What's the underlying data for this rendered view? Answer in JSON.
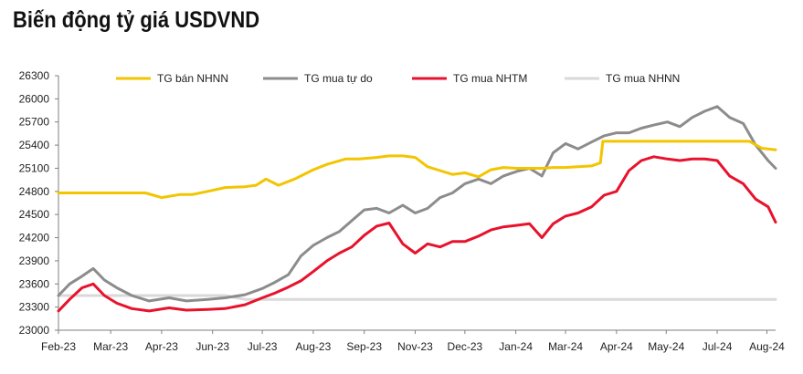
{
  "chart_data": {
    "type": "line",
    "title": "Biến động tỷ giá USDVND",
    "xlabel": "",
    "ylabel": "",
    "ylim": [
      23000,
      26300
    ],
    "yticks": [
      23000,
      23300,
      23600,
      23900,
      24200,
      24500,
      24800,
      25100,
      25400,
      25700,
      26000,
      26300
    ],
    "x_start": "2023-02-01",
    "x_end": "2024-08-31",
    "xticks": [
      "Feb-23",
      "Mar-23",
      "Apr-23",
      "Jun-23",
      "Jul-23",
      "Aug-23",
      "Sep-23",
      "Nov-23",
      "Dec-23",
      "Jan-24",
      "Mar-24",
      "Apr-24",
      "May-24",
      "Jul-24",
      "Aug-24"
    ],
    "xtick_dates": [
      "2023-02-01",
      "2023-03-15",
      "2023-04-25",
      "2023-06-05",
      "2023-07-15",
      "2023-08-25",
      "2023-10-05",
      "2023-11-15",
      "2023-12-25",
      "2024-02-04",
      "2024-03-15",
      "2024-04-25",
      "2024-06-04",
      "2024-07-15",
      "2024-08-24"
    ],
    "legend_position": "top",
    "grid": false,
    "series": [
      {
        "name": "TG bán NHNN",
        "color": "#F2C500",
        "x": [
          "2023-02-01",
          "2023-03-01",
          "2023-04-01",
          "2023-04-12",
          "2023-04-25",
          "2023-05-10",
          "2023-05-20",
          "2023-06-01",
          "2023-06-15",
          "2023-07-01",
          "2023-07-10",
          "2023-07-18",
          "2023-07-28",
          "2023-08-10",
          "2023-08-25",
          "2023-09-05",
          "2023-09-20",
          "2023-10-01",
          "2023-10-15",
          "2023-10-25",
          "2023-11-05",
          "2023-11-15",
          "2023-11-25",
          "2023-12-05",
          "2023-12-15",
          "2023-12-25",
          "2024-01-05",
          "2024-01-15",
          "2024-01-25",
          "2024-02-05",
          "2024-02-15",
          "2024-02-25",
          "2024-03-05",
          "2024-03-15",
          "2024-03-25",
          "2024-04-05",
          "2024-04-12",
          "2024-04-14",
          "2024-05-01",
          "2024-06-01",
          "2024-07-01",
          "2024-08-01",
          "2024-08-10",
          "2024-08-20",
          "2024-08-31"
        ],
        "values": [
          24780,
          24780,
          24780,
          24780,
          24720,
          24760,
          24760,
          24800,
          24850,
          24860,
          24880,
          24960,
          24880,
          24960,
          25080,
          25150,
          25220,
          25220,
          25240,
          25260,
          25260,
          25240,
          25120,
          25070,
          25020,
          25040,
          24990,
          25080,
          25110,
          25100,
          25100,
          25100,
          25110,
          25110,
          25120,
          25130,
          25170,
          25450,
          25450,
          25450,
          25450,
          25450,
          25450,
          25360,
          25340
        ]
      },
      {
        "name": "TG mua tự do",
        "color": "#8C8C8C",
        "x": [
          "2023-02-01",
          "2023-02-10",
          "2023-02-20",
          "2023-03-01",
          "2023-03-10",
          "2023-03-20",
          "2023-04-01",
          "2023-04-15",
          "2023-05-01",
          "2023-05-15",
          "2023-06-01",
          "2023-06-15",
          "2023-07-01",
          "2023-07-15",
          "2023-07-25",
          "2023-08-05",
          "2023-08-15",
          "2023-08-25",
          "2023-09-05",
          "2023-09-15",
          "2023-09-25",
          "2023-10-05",
          "2023-10-15",
          "2023-10-25",
          "2023-11-05",
          "2023-11-15",
          "2023-11-25",
          "2023-12-05",
          "2023-12-15",
          "2023-12-25",
          "2024-01-05",
          "2024-01-15",
          "2024-01-25",
          "2024-02-05",
          "2024-02-15",
          "2024-02-25",
          "2024-03-05",
          "2024-03-15",
          "2024-03-25",
          "2024-04-05",
          "2024-04-15",
          "2024-04-25",
          "2024-05-05",
          "2024-05-15",
          "2024-05-25",
          "2024-06-05",
          "2024-06-15",
          "2024-06-25",
          "2024-07-05",
          "2024-07-15",
          "2024-07-25",
          "2024-08-05",
          "2024-08-15",
          "2024-08-25",
          "2024-08-31"
        ],
        "values": [
          23450,
          23600,
          23700,
          23800,
          23650,
          23550,
          23450,
          23380,
          23420,
          23380,
          23400,
          23420,
          23460,
          23540,
          23620,
          23720,
          23960,
          24100,
          24200,
          24280,
          24420,
          24560,
          24580,
          24520,
          24620,
          24520,
          24580,
          24720,
          24780,
          24900,
          24960,
          24900,
          25000,
          25060,
          25100,
          25000,
          25300,
          25420,
          25350,
          25440,
          25520,
          25560,
          25560,
          25620,
          25660,
          25700,
          25640,
          25760,
          25840,
          25900,
          25760,
          25680,
          25400,
          25200,
          25100
        ]
      },
      {
        "name": "TG mua NHTM",
        "color": "#E8122C",
        "x": [
          "2023-02-01",
          "2023-02-10",
          "2023-02-20",
          "2023-03-01",
          "2023-03-10",
          "2023-03-20",
          "2023-04-01",
          "2023-04-15",
          "2023-05-01",
          "2023-05-15",
          "2023-06-01",
          "2023-06-15",
          "2023-07-01",
          "2023-07-15",
          "2023-07-25",
          "2023-08-05",
          "2023-08-15",
          "2023-08-25",
          "2023-09-05",
          "2023-09-15",
          "2023-09-25",
          "2023-10-05",
          "2023-10-15",
          "2023-10-25",
          "2023-11-05",
          "2023-11-15",
          "2023-11-25",
          "2023-12-05",
          "2023-12-15",
          "2023-12-25",
          "2024-01-05",
          "2024-01-15",
          "2024-01-25",
          "2024-02-05",
          "2024-02-15",
          "2024-02-25",
          "2024-03-05",
          "2024-03-15",
          "2024-03-25",
          "2024-04-05",
          "2024-04-15",
          "2024-04-25",
          "2024-05-05",
          "2024-05-15",
          "2024-05-25",
          "2024-06-05",
          "2024-06-15",
          "2024-06-25",
          "2024-07-05",
          "2024-07-15",
          "2024-07-25",
          "2024-08-05",
          "2024-08-15",
          "2024-08-25",
          "2024-08-31"
        ],
        "values": [
          23250,
          23400,
          23550,
          23600,
          23450,
          23350,
          23280,
          23250,
          23290,
          23260,
          23270,
          23280,
          23330,
          23420,
          23480,
          23560,
          23640,
          23760,
          23900,
          24000,
          24080,
          24230,
          24350,
          24390,
          24120,
          24000,
          24120,
          24080,
          24150,
          24150,
          24220,
          24300,
          24340,
          24360,
          24380,
          24200,
          24380,
          24480,
          24520,
          24600,
          24750,
          24800,
          25070,
          25200,
          25250,
          25220,
          25200,
          25220,
          25220,
          25200,
          25000,
          24900,
          24700,
          24600,
          24400
        ]
      },
      {
        "name": "TG mua NHNN",
        "color": "#D9D9D9",
        "x": [
          "2023-02-01",
          "2023-03-20",
          "2023-05-01",
          "2023-06-15",
          "2023-07-01",
          "2024-08-31"
        ],
        "values": [
          23450,
          23450,
          23450,
          23450,
          23400,
          23400
        ]
      }
    ]
  }
}
